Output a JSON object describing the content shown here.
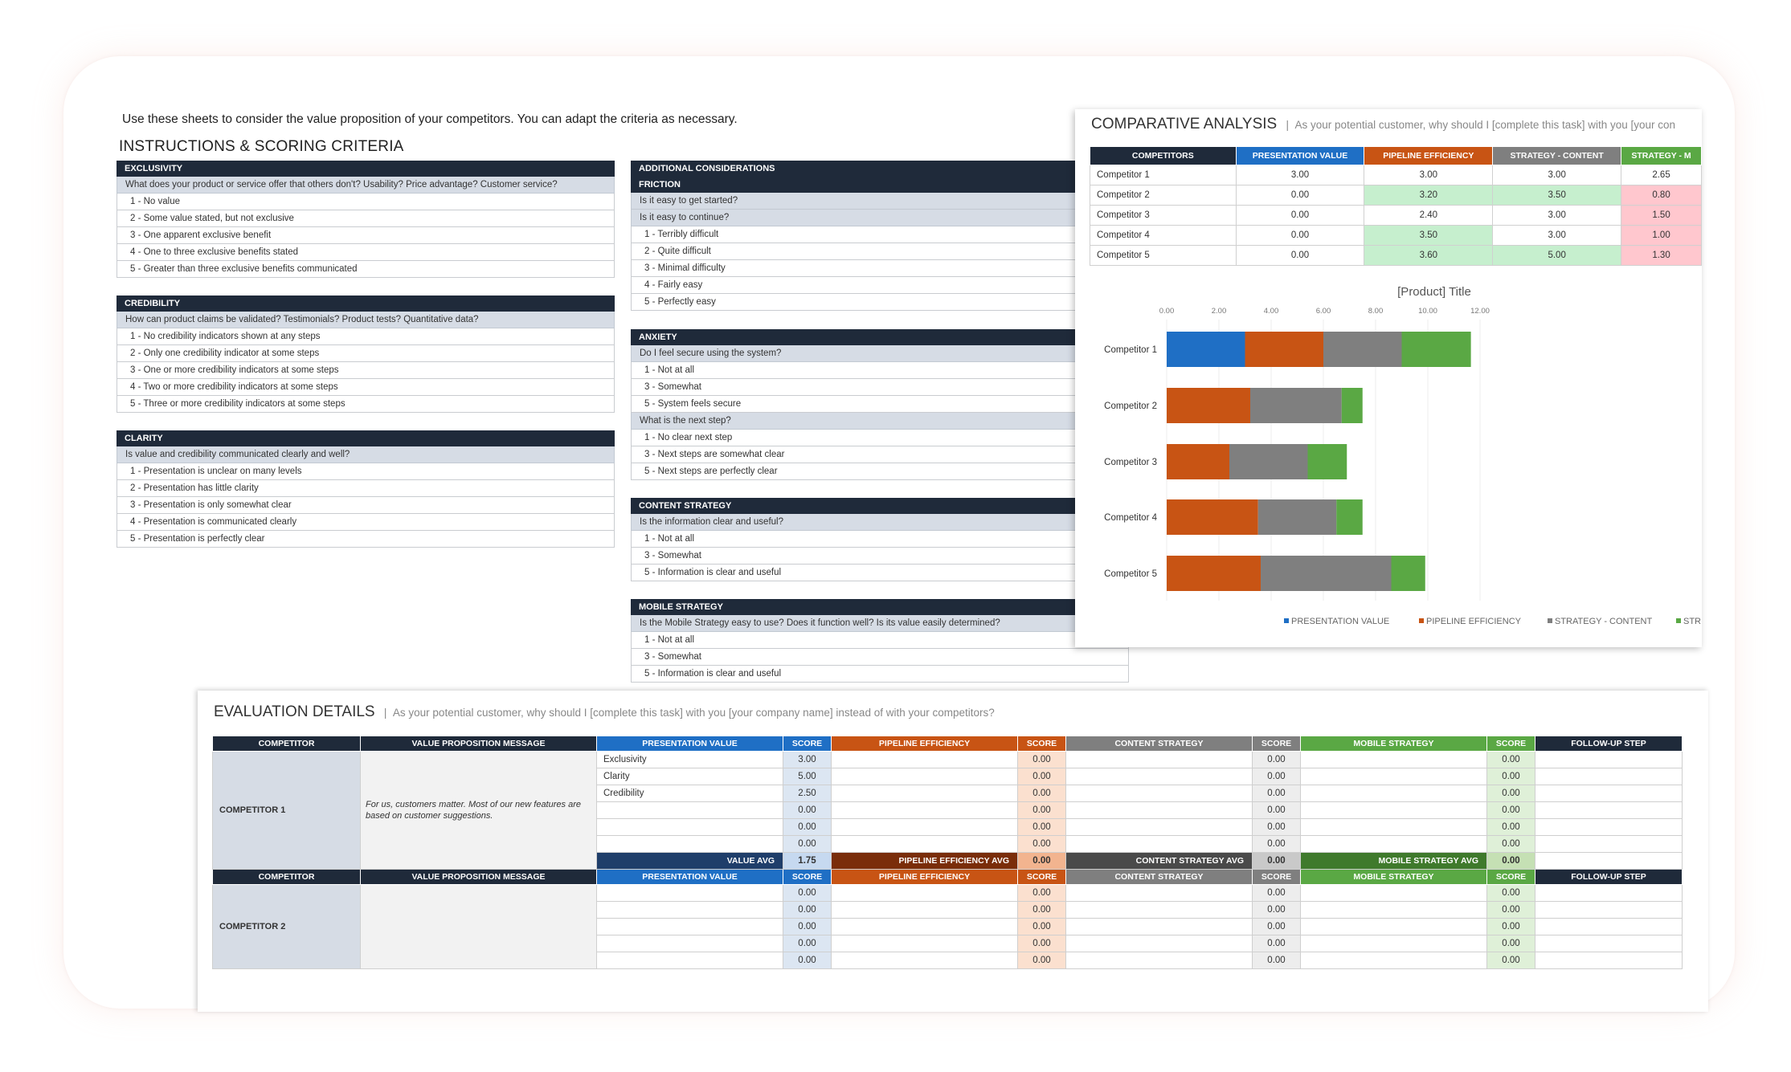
{
  "intro": "Use these sheets to consider the value proposition of your competitors. You can adapt the criteria as necessary.",
  "instructions_title": "INSTRUCTIONS & SCORING CRITERIA",
  "left_sections": [
    {
      "title": "EXCLUSIVITY",
      "rows": [
        {
          "t": "q",
          "text": "What does your product or service offer that others don't? Usability? Price advantage? Customer service?"
        },
        {
          "t": "l",
          "text": "1 - No value"
        },
        {
          "t": "l",
          "text": "2 - Some value stated, but not exclusive"
        },
        {
          "t": "l",
          "text": "3 - One apparent exclusive benefit"
        },
        {
          "t": "l",
          "text": "4 - One to three exclusive benefits stated"
        },
        {
          "t": "l",
          "text": "5 - Greater than three exclusive benefits communicated"
        }
      ]
    },
    {
      "title": "CREDIBILITY",
      "rows": [
        {
          "t": "q",
          "text": "How can product claims be validated? Testimonials? Product tests? Quantitative data?"
        },
        {
          "t": "l",
          "text": "1 - No credibility indicators shown at any steps"
        },
        {
          "t": "l",
          "text": "2 - Only one credibility indicator at some steps"
        },
        {
          "t": "l",
          "text": "3 - One or more credibility indicators at some steps"
        },
        {
          "t": "l",
          "text": "4 - Two or more credibility indicators at some steps"
        },
        {
          "t": "l",
          "text": "5 - Three or more credibility indicators at some steps"
        }
      ]
    },
    {
      "title": "CLARITY",
      "rows": [
        {
          "t": "q",
          "text": "Is value and credibility communicated clearly and well?"
        },
        {
          "t": "l",
          "text": "1 - Presentation is unclear on many levels"
        },
        {
          "t": "l",
          "text": "2 - Presentation has little clarity"
        },
        {
          "t": "l",
          "text": "3 - Presentation is only somewhat clear"
        },
        {
          "t": "l",
          "text": "4 - Presentation is communicated clearly"
        },
        {
          "t": "l",
          "text": "5 - Presentation is perfectly clear"
        }
      ]
    }
  ],
  "right_sections": [
    {
      "title": "ADDITIONAL CONSIDERATIONS",
      "rows": [
        {
          "t": "h",
          "text": "FRICTION"
        },
        {
          "t": "q",
          "text": "Is it easy to get started?"
        },
        {
          "t": "q",
          "text": "Is it easy to continue?"
        },
        {
          "t": "l",
          "text": "1 - Terribly difficult"
        },
        {
          "t": "l",
          "text": "2 - Quite difficult"
        },
        {
          "t": "l",
          "text": "3 - Minimal difficulty"
        },
        {
          "t": "l",
          "text": "4 - Fairly easy"
        },
        {
          "t": "l",
          "text": "5 - Perfectly easy"
        }
      ]
    },
    {
      "title": "ANXIETY",
      "rows": [
        {
          "t": "q",
          "text": "Do I feel secure using the system?"
        },
        {
          "t": "l",
          "text": "1 - Not at all"
        },
        {
          "t": "l",
          "text": "3 - Somewhat"
        },
        {
          "t": "l",
          "text": "5 - System feels secure"
        },
        {
          "t": "q",
          "text": "What is the next step?"
        },
        {
          "t": "l",
          "text": "1 - No clear next step"
        },
        {
          "t": "l",
          "text": "3 - Next steps are somewhat clear"
        },
        {
          "t": "l",
          "text": "5 - Next steps are perfectly clear"
        }
      ]
    },
    {
      "title": "CONTENT STRATEGY",
      "rows": [
        {
          "t": "q",
          "text": "Is the information clear and useful?"
        },
        {
          "t": "l",
          "text": "1 - Not at all"
        },
        {
          "t": "l",
          "text": "3 - Somewhat"
        },
        {
          "t": "l",
          "text": "5 - Information is clear and useful"
        }
      ]
    },
    {
      "title": "MOBILE STRATEGY",
      "rows": [
        {
          "t": "q",
          "text": "Is the Mobile Strategy easy to use?  Does it function well?  Is its value easily determined?"
        },
        {
          "t": "l",
          "text": "1 - Not at all"
        },
        {
          "t": "l",
          "text": "3 - Somewhat"
        },
        {
          "t": "l",
          "text": "5 - Information is clear and useful"
        }
      ]
    }
  ],
  "comparative": {
    "title": "COMPARATIVE ANALYSIS",
    "subtitle": "As your potential customer, why should I [complete this task] with you [your con",
    "headers": [
      "COMPETITORS",
      "PRESENTATION VALUE",
      "PIPELINE EFFICIENCY",
      "STRATEGY - CONTENT",
      "STRATEGY - M"
    ],
    "header_colors": [
      "#1f2a3a",
      "#1f6fc5",
      "#c85414",
      "#7f7f7f",
      "#5aa844"
    ],
    "rows": [
      [
        "Competitor 1",
        "3.00",
        "3.00",
        "3.00",
        "2.65"
      ],
      [
        "Competitor 2",
        "0.00",
        "3.20",
        "3.50",
        "0.80"
      ],
      [
        "Competitor 3",
        "0.00",
        "2.40",
        "3.00",
        "1.50"
      ],
      [
        "Competitor 4",
        "0.00",
        "3.50",
        "3.00",
        "1.00"
      ],
      [
        "Competitor 5",
        "0.00",
        "3.60",
        "5.00",
        "1.30"
      ]
    ],
    "cell_highlights": [
      [
        "",
        "",
        "",
        ""
      ],
      [
        "",
        "green",
        "green",
        "red"
      ],
      [
        "",
        "",
        "",
        "red"
      ],
      [
        "",
        "green",
        "",
        "red"
      ],
      [
        "",
        "green",
        "green",
        "red"
      ]
    ]
  },
  "chart_data": {
    "type": "bar",
    "orientation": "horizontal",
    "stacked": true,
    "title": "[Product] Title",
    "categories": [
      "Competitor 1",
      "Competitor 2",
      "Competitor 3",
      "Competitor 4",
      "Competitor 5"
    ],
    "series": [
      {
        "name": "PRESENTATION VALUE",
        "color": "#1f6fc5",
        "values": [
          3.0,
          0.0,
          0.0,
          0.0,
          0.0
        ]
      },
      {
        "name": "PIPELINE EFFICIENCY",
        "color": "#c85414",
        "values": [
          3.0,
          3.2,
          2.4,
          3.5,
          3.6
        ]
      },
      {
        "name": "STRATEGY - CONTENT",
        "color": "#7f7f7f",
        "values": [
          3.0,
          3.5,
          3.0,
          3.0,
          5.0
        ]
      },
      {
        "name": "STR",
        "color": "#5aa844",
        "values": [
          2.65,
          0.8,
          1.5,
          1.0,
          1.3
        ]
      }
    ],
    "xticks": [
      "0.00",
      "2.00",
      "4.00",
      "6.00",
      "8.00",
      "10.00",
      "12.00"
    ],
    "xlim": [
      0,
      12
    ],
    "legend_position": "bottom"
  },
  "evaluation": {
    "title": "EVALUATION DETAILS",
    "subtitle": "As your potential customer, why should I [complete this task] with you [your company name] instead of with your competitors?",
    "headers": [
      "COMPETITOR",
      "VALUE PROPOSITION MESSAGE",
      "PRESENTATION VALUE",
      "SCORE",
      "PIPELINE EFFICIENCY",
      "SCORE",
      "CONTENT STRATEGY",
      "SCORE",
      "MOBILE STRATEGY",
      "SCORE",
      "FOLLOW-UP STEP"
    ],
    "header_colors": [
      "#1f2a3a",
      "#1f2a3a",
      "#1f6fc5",
      "#1f6fc5",
      "#c85414",
      "#c85414",
      "#7f7f7f",
      "#7f7f7f",
      "#5aa844",
      "#5aa844",
      "#1f2a3a"
    ],
    "competitor1": {
      "name": "COMPETITOR 1",
      "message": "For us, customers matter. Most of our new features are based on customer suggestions.",
      "rows": [
        {
          "crit": "Exclusivity",
          "pv": "3.00",
          "pe": "0.00",
          "cs": "0.00",
          "ms": "0.00"
        },
        {
          "crit": "Clarity",
          "pv": "5.00",
          "pe": "0.00",
          "cs": "0.00",
          "ms": "0.00"
        },
        {
          "crit": "Credibility",
          "pv": "2.50",
          "pe": "0.00",
          "cs": "0.00",
          "ms": "0.00"
        },
        {
          "crit": "",
          "pv": "0.00",
          "pe": "0.00",
          "cs": "0.00",
          "ms": "0.00"
        },
        {
          "crit": "",
          "pv": "0.00",
          "pe": "0.00",
          "cs": "0.00",
          "ms": "0.00"
        },
        {
          "crit": "",
          "pv": "0.00",
          "pe": "0.00",
          "cs": "0.00",
          "ms": "0.00"
        }
      ],
      "avg": {
        "pv_label": "VALUE AVG",
        "pv": "1.75",
        "pe_label": "PIPELINE EFFICIENCY AVG",
        "pe": "0.00",
        "cs_label": "CONTENT STRATEGY AVG",
        "cs": "0.00",
        "ms_label": "MOBILE STRATEGY AVG",
        "ms": "0.00"
      }
    },
    "competitor2": {
      "name": "COMPETITOR 2",
      "rows": [
        {
          "crit": "",
          "pv": "0.00",
          "pe": "0.00",
          "cs": "0.00",
          "ms": "0.00"
        },
        {
          "crit": "",
          "pv": "0.00",
          "pe": "0.00",
          "cs": "0.00",
          "ms": "0.00"
        },
        {
          "crit": "",
          "pv": "0.00",
          "pe": "0.00",
          "cs": "0.00",
          "ms": "0.00"
        },
        {
          "crit": "",
          "pv": "0.00",
          "pe": "0.00",
          "cs": "0.00",
          "ms": "0.00"
        },
        {
          "crit": "",
          "pv": "0.00",
          "pe": "0.00",
          "cs": "0.00",
          "ms": "0.00"
        }
      ]
    }
  }
}
